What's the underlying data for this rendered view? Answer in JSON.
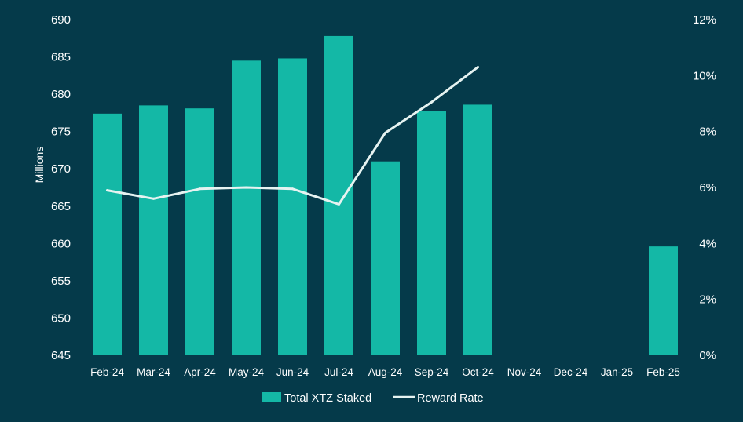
{
  "chart_data": {
    "type": "bar",
    "categories": [
      "Feb-24",
      "Mar-24",
      "Apr-24",
      "May-24",
      "Jun-24",
      "Jul-24",
      "Aug-24",
      "Sep-24",
      "Oct-24",
      "Nov-24",
      "Dec-24",
      "Jan-25",
      "Feb-25"
    ],
    "series": [
      {
        "name": "Total XTZ Staked",
        "type": "bar",
        "axis": "left",
        "color": "#14b8a6",
        "values": [
          677.4,
          678.5,
          678.1,
          684.5,
          684.8,
          687.8,
          671.0,
          677.8,
          678.6,
          null,
          null,
          null,
          659.6
        ]
      },
      {
        "name": "Reward Rate",
        "type": "line",
        "axis": "right",
        "color": "#e6f3f1",
        "values": [
          5.9,
          5.6,
          5.95,
          6.0,
          5.95,
          5.4,
          7.95,
          9.05,
          10.3,
          null,
          null,
          null,
          null
        ]
      }
    ],
    "ylabel": "Millions",
    "ylim": [
      645,
      690
    ],
    "yticks": [
      "645",
      "650",
      "655",
      "660",
      "665",
      "670",
      "675",
      "680",
      "685",
      "690"
    ],
    "y2lim": [
      0,
      12
    ],
    "y2ticks": [
      "0%",
      "2%",
      "4%",
      "6%",
      "8%",
      "10%",
      "12%"
    ],
    "grid": false,
    "legend_position": "bottom"
  }
}
